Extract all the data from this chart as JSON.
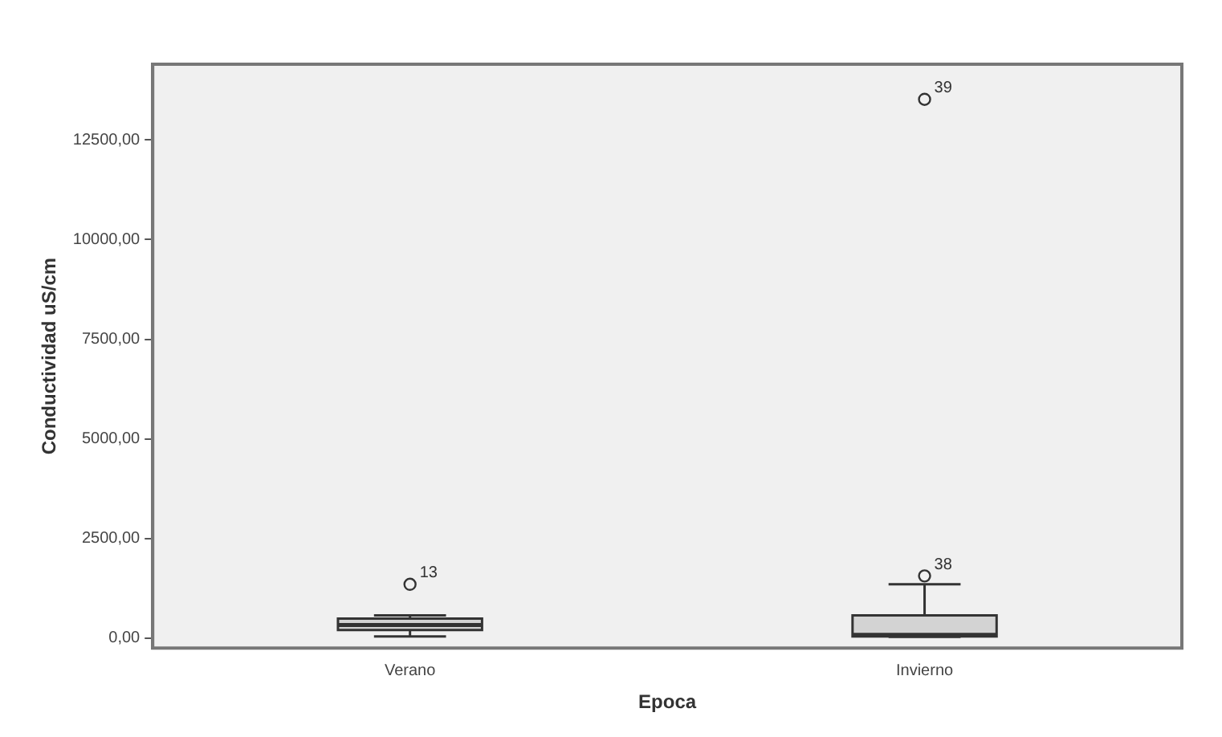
{
  "chart_data": {
    "type": "box",
    "xlabel": "Epoca",
    "ylabel": "Conductividad uS/cm",
    "categories": [
      "Verano",
      "Invierno"
    ],
    "boxes": [
      {
        "low": 40,
        "q1": 200,
        "median": 330,
        "q3": 490,
        "high": 570,
        "outliers": [
          1350
        ]
      },
      {
        "low": 30,
        "q1": 40,
        "median": 80,
        "q3": 570,
        "high": 1350,
        "outliers": [
          1560,
          13520
        ]
      }
    ],
    "color": "#d3d3d3",
    "ylim": [
      -250,
      14400
    ],
    "yticks": [
      {
        "value": 0,
        "label": "0,00"
      },
      {
        "value": 2500,
        "label": "2500,00"
      },
      {
        "value": 5000,
        "label": "5000,00"
      },
      {
        "value": 7500,
        "label": "7500,00"
      },
      {
        "value": 10000,
        "label": "10000,00"
      },
      {
        "value": 12500,
        "label": "12500,00"
      }
    ],
    "annotations": [
      "13",
      "38",
      "39"
    ],
    "grid": false,
    "legend": false
  }
}
